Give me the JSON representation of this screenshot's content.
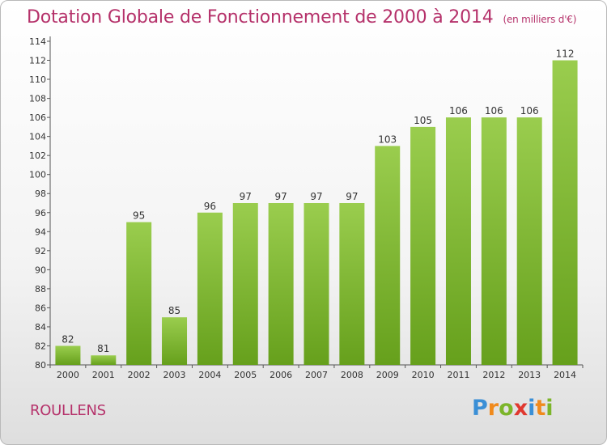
{
  "title": "Dotation Globale de Fonctionnement de 2000 à 2014",
  "subtitle": "(en milliers d'€)",
  "commune": "ROULLENS",
  "logo": {
    "text": "Proxiti",
    "letter_colors": [
      "#3a8fd6",
      "#f08a1c",
      "#7cb52a",
      "#e0382f",
      "#3a8fd6",
      "#f08a1c",
      "#7cb52a"
    ]
  },
  "colors": {
    "bar_top": "#9acd4e",
    "bar_bottom": "#66a01c",
    "title": "#b5316a"
  },
  "chart_data": {
    "type": "bar",
    "categories": [
      "2000",
      "2001",
      "2002",
      "2003",
      "2004",
      "2005",
      "2006",
      "2007",
      "2008",
      "2009",
      "2010",
      "2011",
      "2012",
      "2013",
      "2014"
    ],
    "values": [
      82,
      81,
      95,
      85,
      96,
      97,
      97,
      97,
      97,
      103,
      105,
      106,
      106,
      106,
      112
    ],
    "ylim": [
      80,
      114
    ],
    "yticks": [
      80,
      82,
      84,
      86,
      88,
      90,
      92,
      94,
      96,
      98,
      100,
      102,
      104,
      106,
      108,
      110,
      112,
      114
    ],
    "grid": false,
    "legend": "none"
  }
}
